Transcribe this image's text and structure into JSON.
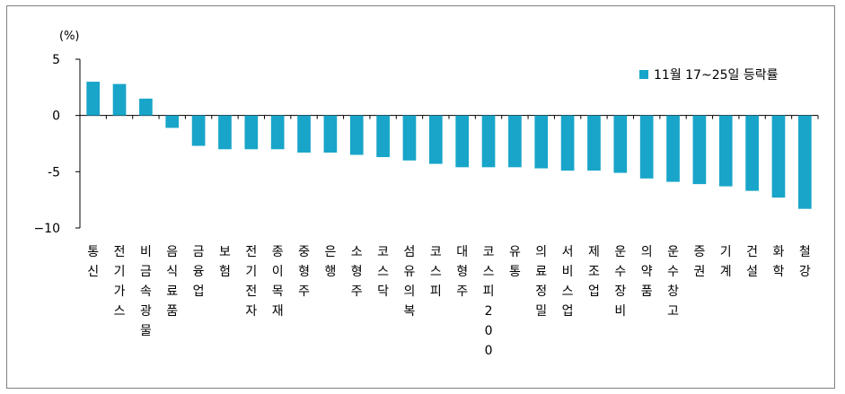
{
  "chart_data": {
    "type": "bar",
    "unit": "(%)",
    "ylim": [
      -10,
      5
    ],
    "yticks": [
      5,
      0,
      -5,
      -10
    ],
    "ytick_labels": [
      "5",
      "0",
      "-5",
      "−10"
    ],
    "grid": false,
    "legend_position": "top-right",
    "bar_color": "#18A5C9",
    "categories": [
      "통신",
      "전기가스",
      "비금속광물",
      "음식료품",
      "금융업",
      "보험",
      "전기전자",
      "종이목재",
      "중형주",
      "은행",
      "소형주",
      "코스닥",
      "섬유의복",
      "코스피",
      "대형주",
      "코스피200",
      "유통",
      "의료정밀",
      "서비스업",
      "제조업",
      "운수장비",
      "의약품",
      "운수창고",
      "증권",
      "기계",
      "건설",
      "화학",
      "철강"
    ],
    "series": [
      {
        "name": "11월 17~25일 등락률",
        "values": [
          3.0,
          2.8,
          1.5,
          -1.1,
          -2.7,
          -3.0,
          -3.0,
          -3.0,
          -3.3,
          -3.3,
          -3.5,
          -3.7,
          -4.0,
          -4.3,
          -4.6,
          -4.6,
          -4.6,
          -4.7,
          -4.9,
          -4.9,
          -5.1,
          -5.6,
          -5.9,
          -6.1,
          -6.3,
          -6.7,
          -7.3,
          -8.3
        ]
      }
    ]
  }
}
